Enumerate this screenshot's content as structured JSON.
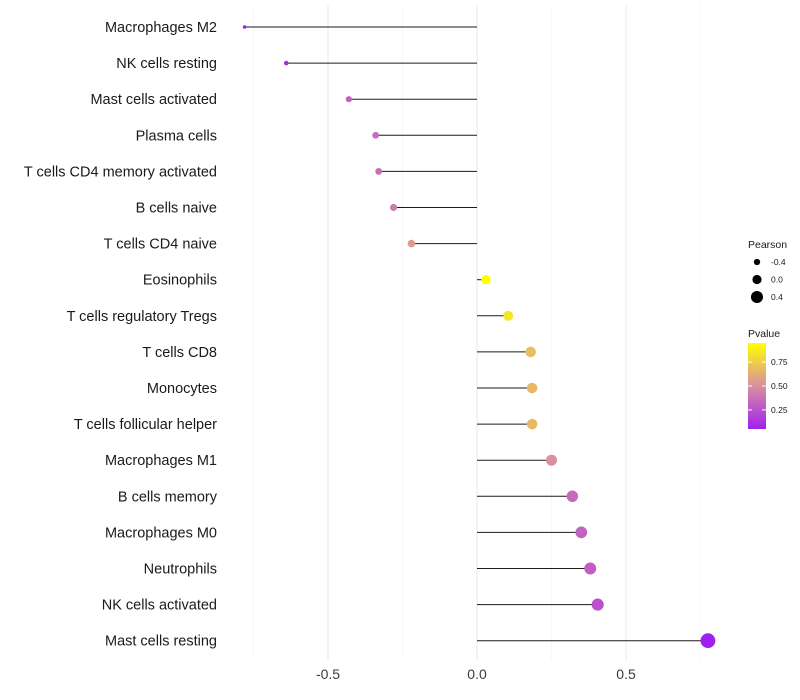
{
  "chart_data": {
    "type": "lollipop",
    "title": "",
    "xlabel": "",
    "ylabel": "",
    "xlim": [
      -0.8,
      0.8
    ],
    "x_ticks": [
      {
        "value": -0.5,
        "label": "-0.5"
      },
      {
        "value": 0.0,
        "label": "0.0"
      },
      {
        "value": 0.5,
        "label": "0.5"
      }
    ],
    "grid": true,
    "categories": [
      "Macrophages M2",
      "NK cells resting",
      "Mast cells activated",
      "Plasma cells",
      "T cells CD4 memory activated",
      "B cells naive",
      "T cells CD4 naive",
      "Eosinophils",
      "T cells regulatory  Tregs ",
      "T cells CD8",
      "Monocytes",
      "T cells follicular helper",
      "Macrophages M1",
      "B cells memory",
      "Macrophages M0",
      "Neutrophils",
      "NK cells activated",
      "Mast cells resting"
    ],
    "pearson": [
      -0.78,
      -0.64,
      -0.43,
      -0.34,
      -0.33,
      -0.28,
      -0.22,
      0.03,
      0.105,
      0.18,
      0.185,
      0.185,
      0.25,
      0.32,
      0.35,
      0.38,
      0.405,
      0.775
    ],
    "pvalue": [
      0.05,
      0.1,
      0.3,
      0.35,
      0.37,
      0.42,
      0.55,
      0.95,
      0.85,
      0.68,
      0.67,
      0.67,
      0.5,
      0.35,
      0.32,
      0.3,
      0.25,
      0.05
    ],
    "size_legend": {
      "title": "Pearson",
      "entries": [
        {
          "value": -0.4,
          "label": "-0.4"
        },
        {
          "value": 0.0,
          "label": "0.0"
        },
        {
          "value": 0.4,
          "label": "0.4"
        }
      ]
    },
    "color_legend": {
      "title": "Pvalue",
      "range": [
        0.05,
        0.95
      ],
      "ticks": [
        {
          "value": 0.75,
          "label": "0.75"
        },
        {
          "value": 0.5,
          "label": "0.50"
        },
        {
          "value": 0.25,
          "label": "0.25"
        }
      ],
      "low_color": "#a020f0",
      "mid_color": "#d98fa0",
      "high_color": "#ffff00"
    }
  }
}
